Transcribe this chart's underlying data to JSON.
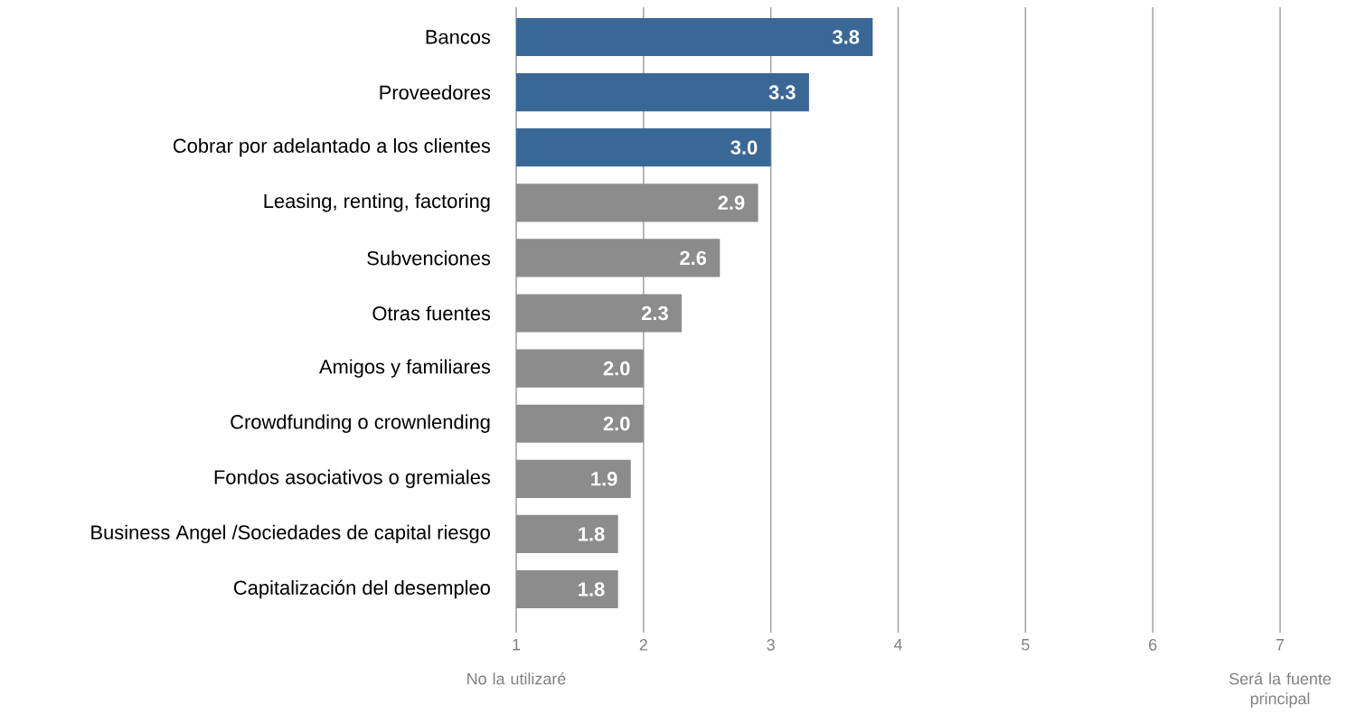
{
  "chart_data": {
    "type": "bar",
    "orientation": "horizontal",
    "categories": [
      "Bancos",
      "Proveedores",
      "Cobrar por adelantado a los clientes",
      "Leasing, renting, factoring",
      "Subvenciones",
      "Otras fuentes",
      "Amigos y familiares",
      "Crowdfunding o crownlending",
      "Fondos asociativos o gremiales",
      "Business Angel /Sociedades de capital riesgo",
      "Capitalización del desempleo"
    ],
    "values": [
      3.8,
      3.3,
      3.0,
      2.9,
      2.6,
      2.3,
      2.0,
      2.0,
      1.9,
      1.8,
      1.8
    ],
    "value_labels": [
      "3.8",
      "3.3",
      "3.0",
      "2.9",
      "2.6",
      "2.3",
      "2.0",
      "2.0",
      "1.9",
      "1.8",
      "1.8"
    ],
    "colors": [
      "#3a6896",
      "#3a6896",
      "#3a6896",
      "#8c8c8c",
      "#8c8c8c",
      "#8c8c8c",
      "#8c8c8c",
      "#8c8c8c",
      "#8c8c8c",
      "#8c8c8c",
      "#8c8c8c"
    ],
    "xlim": [
      1,
      7
    ],
    "xticks": [
      1,
      2,
      3,
      4,
      5,
      6,
      7
    ],
    "grid": "x",
    "annotations": [
      "No la utilizaré",
      "Será la fuente principal"
    ]
  }
}
